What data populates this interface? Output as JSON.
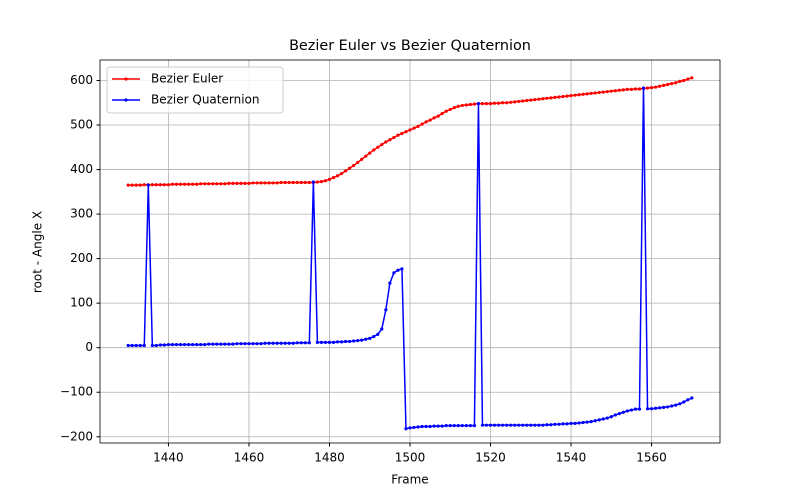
{
  "chart_data": {
    "type": "line",
    "title": "Bezier Euler vs Bezier Quaternion",
    "x_label": "Frame",
    "y_label": "root - Angle X",
    "x": [
      1430,
      1431,
      1432,
      1433,
      1434,
      1435,
      1436,
      1437,
      1438,
      1439,
      1440,
      1441,
      1442,
      1443,
      1444,
      1445,
      1446,
      1447,
      1448,
      1449,
      1450,
      1451,
      1452,
      1453,
      1454,
      1455,
      1456,
      1457,
      1458,
      1459,
      1460,
      1461,
      1462,
      1463,
      1464,
      1465,
      1466,
      1467,
      1468,
      1469,
      1470,
      1471,
      1472,
      1473,
      1474,
      1475,
      1476,
      1477,
      1478,
      1479,
      1480,
      1481,
      1482,
      1483,
      1484,
      1485,
      1486,
      1487,
      1488,
      1489,
      1490,
      1491,
      1492,
      1493,
      1494,
      1495,
      1496,
      1497,
      1498,
      1499,
      1500,
      1501,
      1502,
      1503,
      1504,
      1505,
      1506,
      1507,
      1508,
      1509,
      1510,
      1511,
      1512,
      1513,
      1514,
      1515,
      1516,
      1517,
      1518,
      1519,
      1520,
      1521,
      1522,
      1523,
      1524,
      1525,
      1526,
      1527,
      1528,
      1529,
      1530,
      1531,
      1532,
      1533,
      1534,
      1535,
      1536,
      1537,
      1538,
      1539,
      1540,
      1541,
      1542,
      1543,
      1544,
      1545,
      1546,
      1547,
      1548,
      1549,
      1550,
      1551,
      1552,
      1553,
      1554,
      1555,
      1556,
      1557,
      1558,
      1559,
      1560,
      1561,
      1562,
      1563,
      1564,
      1565,
      1566,
      1567,
      1568,
      1569,
      1570
    ],
    "series": [
      {
        "name": "Bezier Euler",
        "color": "#ff0000",
        "values": [
          365,
          365,
          365,
          365,
          366,
          366,
          366,
          366,
          366,
          366,
          366,
          367,
          367,
          367,
          367,
          367,
          367,
          367,
          368,
          368,
          368,
          368,
          368,
          368,
          368,
          369,
          369,
          369,
          369,
          369,
          369,
          370,
          370,
          370,
          370,
          370,
          370,
          370,
          371,
          371,
          371,
          371,
          371,
          371,
          371,
          371,
          371,
          372,
          373,
          375,
          378,
          382,
          386,
          391,
          397,
          403,
          409,
          416,
          423,
          430,
          437,
          444,
          450,
          456,
          462,
          467,
          472,
          477,
          481,
          485,
          489,
          493,
          497,
          502,
          507,
          511,
          516,
          520,
          526,
          531,
          535,
          539,
          542,
          544,
          545,
          546,
          547,
          548,
          548,
          548,
          548,
          549,
          549,
          550,
          550,
          551,
          552,
          553,
          554,
          555,
          556,
          557,
          558,
          559,
          560,
          561,
          562,
          563,
          564,
          565,
          566,
          567,
          568,
          569,
          570,
          571,
          572,
          573,
          574,
          575,
          576,
          577,
          578,
          579,
          580,
          580,
          581,
          581,
          582,
          583,
          584,
          585,
          587,
          589,
          591,
          593,
          595,
          598,
          600,
          603,
          606
        ]
      },
      {
        "name": "Bezier Quaternion",
        "color": "#0000ff",
        "values": [
          5,
          5,
          5,
          5,
          5,
          365,
          5,
          5,
          6,
          6,
          7,
          7,
          7,
          7,
          7,
          7,
          7,
          7,
          7,
          7,
          8,
          8,
          8,
          8,
          8,
          8,
          8,
          9,
          9,
          9,
          9,
          9,
          9,
          9,
          10,
          10,
          10,
          10,
          10,
          10,
          10,
          10,
          11,
          11,
          11,
          11,
          372,
          12,
          12,
          12,
          12,
          12,
          13,
          13,
          14,
          14,
          15,
          16,
          17,
          19,
          21,
          25,
          30,
          42,
          85,
          145,
          168,
          174,
          177,
          -182,
          -180,
          -179,
          -178,
          -177,
          -177,
          -177,
          -176,
          -176,
          -176,
          -175,
          -175,
          -175,
          -175,
          -175,
          -175,
          -175,
          -175,
          548,
          -174,
          -174,
          -174,
          -174,
          -174,
          -174,
          -174,
          -174,
          -174,
          -174,
          -174,
          -174,
          -174,
          -174,
          -174,
          -174,
          -173,
          -173,
          -172,
          -172,
          -171,
          -171,
          -170,
          -170,
          -169,
          -168,
          -167,
          -166,
          -164,
          -162,
          -160,
          -158,
          -155,
          -151,
          -148,
          -145,
          -142,
          -140,
          -138,
          -138,
          583,
          -137,
          -137,
          -136,
          -135,
          -134,
          -133,
          -131,
          -129,
          -126,
          -122,
          -117,
          -113
        ]
      }
    ],
    "xlim": [
      1423,
      1577
    ],
    "ylim": [
      -214,
      646
    ],
    "xticks": [
      1440,
      1460,
      1480,
      1500,
      1520,
      1540,
      1560
    ],
    "yticks": [
      {
        "value": -200,
        "label": "−200"
      },
      {
        "value": -100,
        "label": "−100"
      },
      0,
      100,
      200,
      300,
      400,
      500,
      600
    ],
    "grid": true,
    "legend": "upper-left"
  }
}
